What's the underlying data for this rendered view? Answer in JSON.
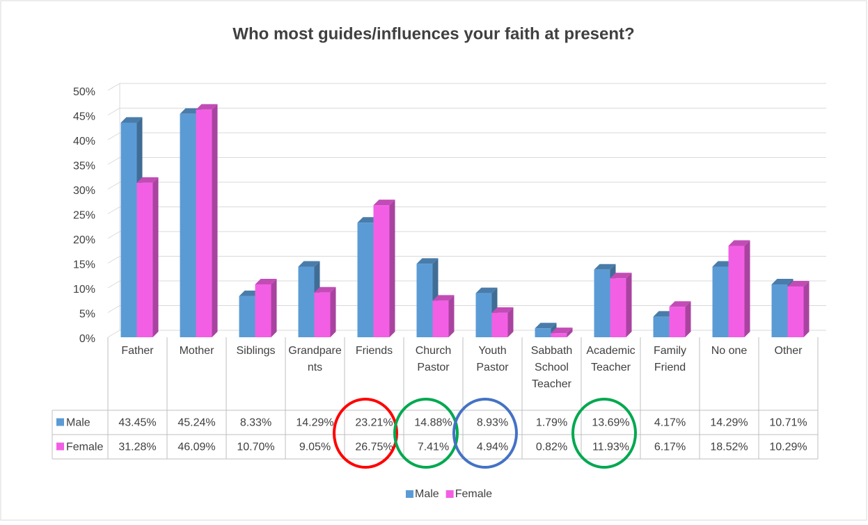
{
  "chart_data": {
    "type": "bar",
    "title": "Who most guides/influences your faith at present?",
    "categories": [
      "Father",
      "Mother",
      "Siblings",
      "Grandparents",
      "Friends",
      "Church Pastor",
      "Youth Pastor",
      "Sabbath School Teacher",
      "Academic Teacher",
      "Family Friend",
      "No one",
      "Other"
    ],
    "series": [
      {
        "name": "Male",
        "color": "#5b9bd5",
        "values": [
          43.45,
          45.24,
          8.33,
          14.29,
          23.21,
          14.88,
          8.93,
          1.79,
          13.69,
          4.17,
          14.29,
          10.71
        ],
        "value_labels": [
          "43.45%",
          "45.24%",
          "8.33%",
          "14.29%",
          "23.21%",
          "14.88%",
          "8.93%",
          "1.79%",
          "13.69%",
          "4.17%",
          "14.29%",
          "10.71%"
        ]
      },
      {
        "name": "Female",
        "color": "#f25fe4",
        "values": [
          31.28,
          46.09,
          10.7,
          9.05,
          26.75,
          7.41,
          4.94,
          0.82,
          11.93,
          6.17,
          18.52,
          10.29
        ],
        "value_labels": [
          "31.28%",
          "46.09%",
          "10.70%",
          "9.05%",
          "26.75%",
          "7.41%",
          "4.94%",
          "0.82%",
          "11.93%",
          "6.17%",
          "18.52%",
          "10.29%"
        ]
      }
    ],
    "ylim": [
      0,
      50
    ],
    "yticks": [
      {
        "value": 0,
        "label": "0%"
      },
      {
        "value": 5,
        "label": "5%"
      },
      {
        "value": 10,
        "label": "10%"
      },
      {
        "value": 15,
        "label": "15%"
      },
      {
        "value": 20,
        "label": "20%"
      },
      {
        "value": 25,
        "label": "25%"
      },
      {
        "value": 30,
        "label": "30%"
      },
      {
        "value": 35,
        "label": "35%"
      },
      {
        "value": 40,
        "label": "40%"
      },
      {
        "value": 45,
        "label": "45%"
      },
      {
        "value": 50,
        "label": "50%"
      }
    ],
    "grid": true,
    "legend": "bottom"
  }
}
